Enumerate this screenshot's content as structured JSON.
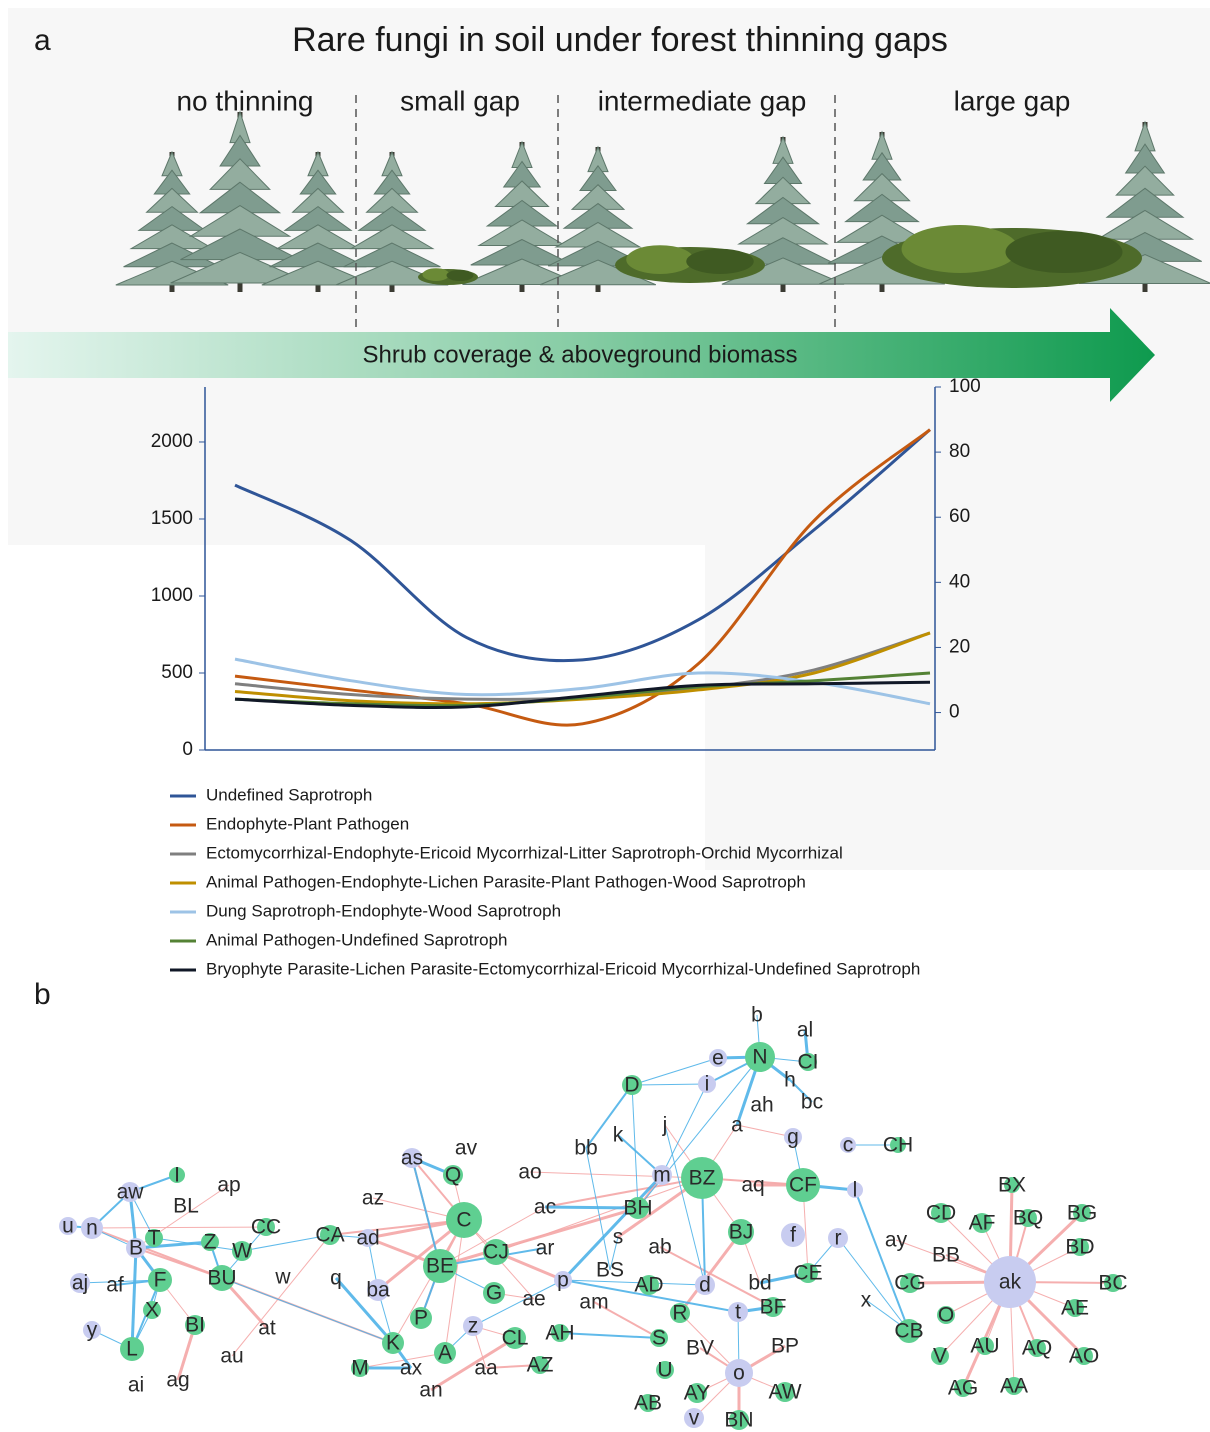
{
  "panel_a": {
    "label": "a",
    "title": "Rare fungi in soil under forest thinning gaps",
    "treatments": [
      "no thinning",
      "small gap",
      "intermediate gap",
      "large gap"
    ],
    "arrow_label": "Shrub coverage & aboveground biomass"
  },
  "chart_data": {
    "type": "line",
    "categories": [
      null,
      null,
      null,
      null,
      null,
      null,
      null
    ],
    "series": [
      {
        "name": "Undefined Saprotroph",
        "color": "#2f5597",
        "values": [
          1720,
          1360,
          730,
          585,
          845,
          1430,
          2080
        ]
      },
      {
        "name": "Endophyte-Plant Pathogen",
        "color": "#c55a11",
        "values": [
          480,
          390,
          300,
          170,
          560,
          1490,
          2080
        ]
      },
      {
        "name": "Ectomycorrhizal-Endophyte-Ericoid Mycorrhizal-Litter Saprotroph-Orchid Mycorrhizal",
        "color": "#7f7f7f",
        "values": [
          430,
          360,
          330,
          340,
          400,
          520,
          760
        ]
      },
      {
        "name": "Animal Pathogen-Endophyte-Lichen Parasite-Plant Pathogen-Wood Saprotroph",
        "color": "#bf8f00",
        "values": [
          380,
          320,
          300,
          330,
          390,
          500,
          760
        ]
      },
      {
        "name": "Dung Saprotroph-Endophyte-Wood Saprotroph",
        "color": "#9dc3e6",
        "values": [
          590,
          450,
          360,
          400,
          500,
          440,
          300
        ]
      },
      {
        "name": "Animal Pathogen-Undefined Saprotroph",
        "color": "#548235",
        "values": [
          330,
          300,
          290,
          340,
          410,
          450,
          500
        ]
      },
      {
        "name": "Bryophyte Parasite-Lichen Parasite-Ectomycorrhizal-Ericoid Mycorrhizal-Undefined Saprotroph",
        "color": "#111827",
        "values": [
          330,
          290,
          280,
          350,
          420,
          430,
          440
        ]
      }
    ],
    "ylim": [
      0,
      2357
    ],
    "yticks": [
      0,
      500,
      1000,
      1500,
      2000
    ],
    "y2lim": [
      -11.5,
      100
    ],
    "y2ticks": [
      0,
      20,
      40,
      60,
      80,
      100
    ]
  },
  "panel_b": {
    "label": "b",
    "nodes": [
      {
        "label": "e",
        "color": "#c8ccf0"
      },
      {
        "label": "b"
      },
      {
        "label": "al"
      },
      {
        "label": "N",
        "color": "#5fcf91"
      },
      {
        "label": "CI",
        "color": "#5fcf91"
      },
      {
        "label": "i",
        "color": "#c8ccf0"
      },
      {
        "label": "h"
      },
      {
        "label": "D",
        "color": "#5fcf91"
      },
      {
        "label": "ah"
      },
      {
        "label": "bc"
      },
      {
        "label": "j"
      },
      {
        "label": "a"
      },
      {
        "label": "g",
        "color": "#c8ccf0"
      },
      {
        "label": "k"
      },
      {
        "label": "bb"
      },
      {
        "label": "c",
        "color": "#c8ccf0"
      },
      {
        "label": "CH",
        "color": "#5fcf91"
      },
      {
        "label": "av"
      },
      {
        "label": "as",
        "color": "#c8ccf0"
      },
      {
        "label": "Q",
        "color": "#5fcf91"
      },
      {
        "label": "ao"
      },
      {
        "label": "m",
        "color": "#c8ccf0"
      },
      {
        "label": "BZ",
        "color": "#5fcf91"
      },
      {
        "label": "aq"
      },
      {
        "label": "CF",
        "color": "#5fcf91"
      },
      {
        "label": "l",
        "color": "#c8ccf0"
      },
      {
        "label": "aw",
        "color": "#c8ccf0"
      },
      {
        "label": "I",
        "color": "#5fcf91"
      },
      {
        "label": "ap"
      },
      {
        "label": "BL"
      },
      {
        "label": "az"
      },
      {
        "label": "ac"
      },
      {
        "label": "BH",
        "color": "#5fcf91"
      },
      {
        "label": "BX",
        "color": "#5fcf91"
      },
      {
        "label": "CD",
        "color": "#5fcf91"
      },
      {
        "label": "AF",
        "color": "#5fcf91"
      },
      {
        "label": "BQ",
        "color": "#5fcf91"
      },
      {
        "label": "BG",
        "color": "#5fcf91"
      },
      {
        "label": "u",
        "color": "#c8ccf0"
      },
      {
        "label": "n",
        "color": "#c8ccf0"
      },
      {
        "label": "C",
        "color": "#5fcf91"
      },
      {
        "label": "CJ",
        "color": "#5fcf91"
      },
      {
        "label": "ad",
        "color": "#c8ccf0"
      },
      {
        "label": "CA",
        "color": "#5fcf91"
      },
      {
        "label": "CC",
        "color": "#5fcf91"
      },
      {
        "label": "T",
        "color": "#5fcf91"
      },
      {
        "label": "Z",
        "color": "#5fcf91"
      },
      {
        "label": "W",
        "color": "#5fcf91"
      },
      {
        "label": "B",
        "color": "#c8ccf0"
      },
      {
        "label": "ar"
      },
      {
        "label": "s"
      },
      {
        "label": "ab"
      },
      {
        "label": "BJ",
        "color": "#5fcf91"
      },
      {
        "label": "f",
        "color": "#c8ccf0"
      },
      {
        "label": "r",
        "color": "#c8ccf0"
      },
      {
        "label": "ay"
      },
      {
        "label": "BB"
      },
      {
        "label": "BD",
        "color": "#5fcf91"
      },
      {
        "label": "ak",
        "color": "#c8ccf0"
      },
      {
        "label": "aj",
        "color": "#c8ccf0"
      },
      {
        "label": "af"
      },
      {
        "label": "F",
        "color": "#5fcf91"
      },
      {
        "label": "BU",
        "color": "#5fcf91"
      },
      {
        "label": "w"
      },
      {
        "label": "q"
      },
      {
        "label": "BE",
        "color": "#5fcf91"
      },
      {
        "label": "ba",
        "color": "#c8ccf0"
      },
      {
        "label": "BS"
      },
      {
        "label": "AD",
        "color": "#5fcf91"
      },
      {
        "label": "p",
        "color": "#c8ccf0"
      },
      {
        "label": "d",
        "color": "#c8ccf0"
      },
      {
        "label": "bd"
      },
      {
        "label": "CE",
        "color": "#5fcf91"
      },
      {
        "label": "CG",
        "color": "#5fcf91"
      },
      {
        "label": "BC",
        "color": "#5fcf91"
      },
      {
        "label": "G",
        "color": "#5fcf91"
      },
      {
        "label": "ae"
      },
      {
        "label": "am"
      },
      {
        "label": "X",
        "color": "#5fcf91"
      },
      {
        "label": "y",
        "color": "#c8ccf0"
      },
      {
        "label": "BI",
        "color": "#5fcf91"
      },
      {
        "label": "at"
      },
      {
        "label": "P",
        "color": "#5fcf91"
      },
      {
        "label": "z",
        "color": "#c8ccf0"
      },
      {
        "label": "R",
        "color": "#5fcf91"
      },
      {
        "label": "BF",
        "color": "#5fcf91"
      },
      {
        "label": "t",
        "color": "#c8ccf0"
      },
      {
        "label": "x"
      },
      {
        "label": "CB",
        "color": "#5fcf91"
      },
      {
        "label": "O",
        "color": "#5fcf91"
      },
      {
        "label": "AE",
        "color": "#5fcf91"
      },
      {
        "label": "CL",
        "color": "#5fcf91"
      },
      {
        "label": "AH",
        "color": "#5fcf91"
      },
      {
        "label": "AZ",
        "color": "#5fcf91"
      },
      {
        "label": "K",
        "color": "#5fcf91"
      },
      {
        "label": "A",
        "color": "#5fcf91"
      },
      {
        "label": "au"
      },
      {
        "label": "L",
        "color": "#5fcf91"
      },
      {
        "label": "S",
        "color": "#5fcf91"
      },
      {
        "label": "BV"
      },
      {
        "label": "BP"
      },
      {
        "label": "V",
        "color": "#5fcf91"
      },
      {
        "label": "AU",
        "color": "#5fcf91"
      },
      {
        "label": "AQ",
        "color": "#5fcf91"
      },
      {
        "label": "AO",
        "color": "#5fcf91"
      },
      {
        "label": "M",
        "color": "#5fcf91"
      },
      {
        "label": "ax"
      },
      {
        "label": "aa"
      },
      {
        "label": "U",
        "color": "#5fcf91"
      },
      {
        "label": "o",
        "color": "#c8ccf0"
      },
      {
        "label": "ai"
      },
      {
        "label": "ag"
      },
      {
        "label": "an"
      },
      {
        "label": "AY",
        "color": "#5fcf91"
      },
      {
        "label": "AW",
        "color": "#5fcf91"
      },
      {
        "label": "AG",
        "color": "#5fcf91"
      },
      {
        "label": "AA",
        "color": "#5fcf91"
      },
      {
        "label": "AB",
        "color": "#5fcf91"
      },
      {
        "label": "v",
        "color": "#c8ccf0"
      },
      {
        "label": "BN",
        "color": "#5fcf91"
      }
    ]
  }
}
